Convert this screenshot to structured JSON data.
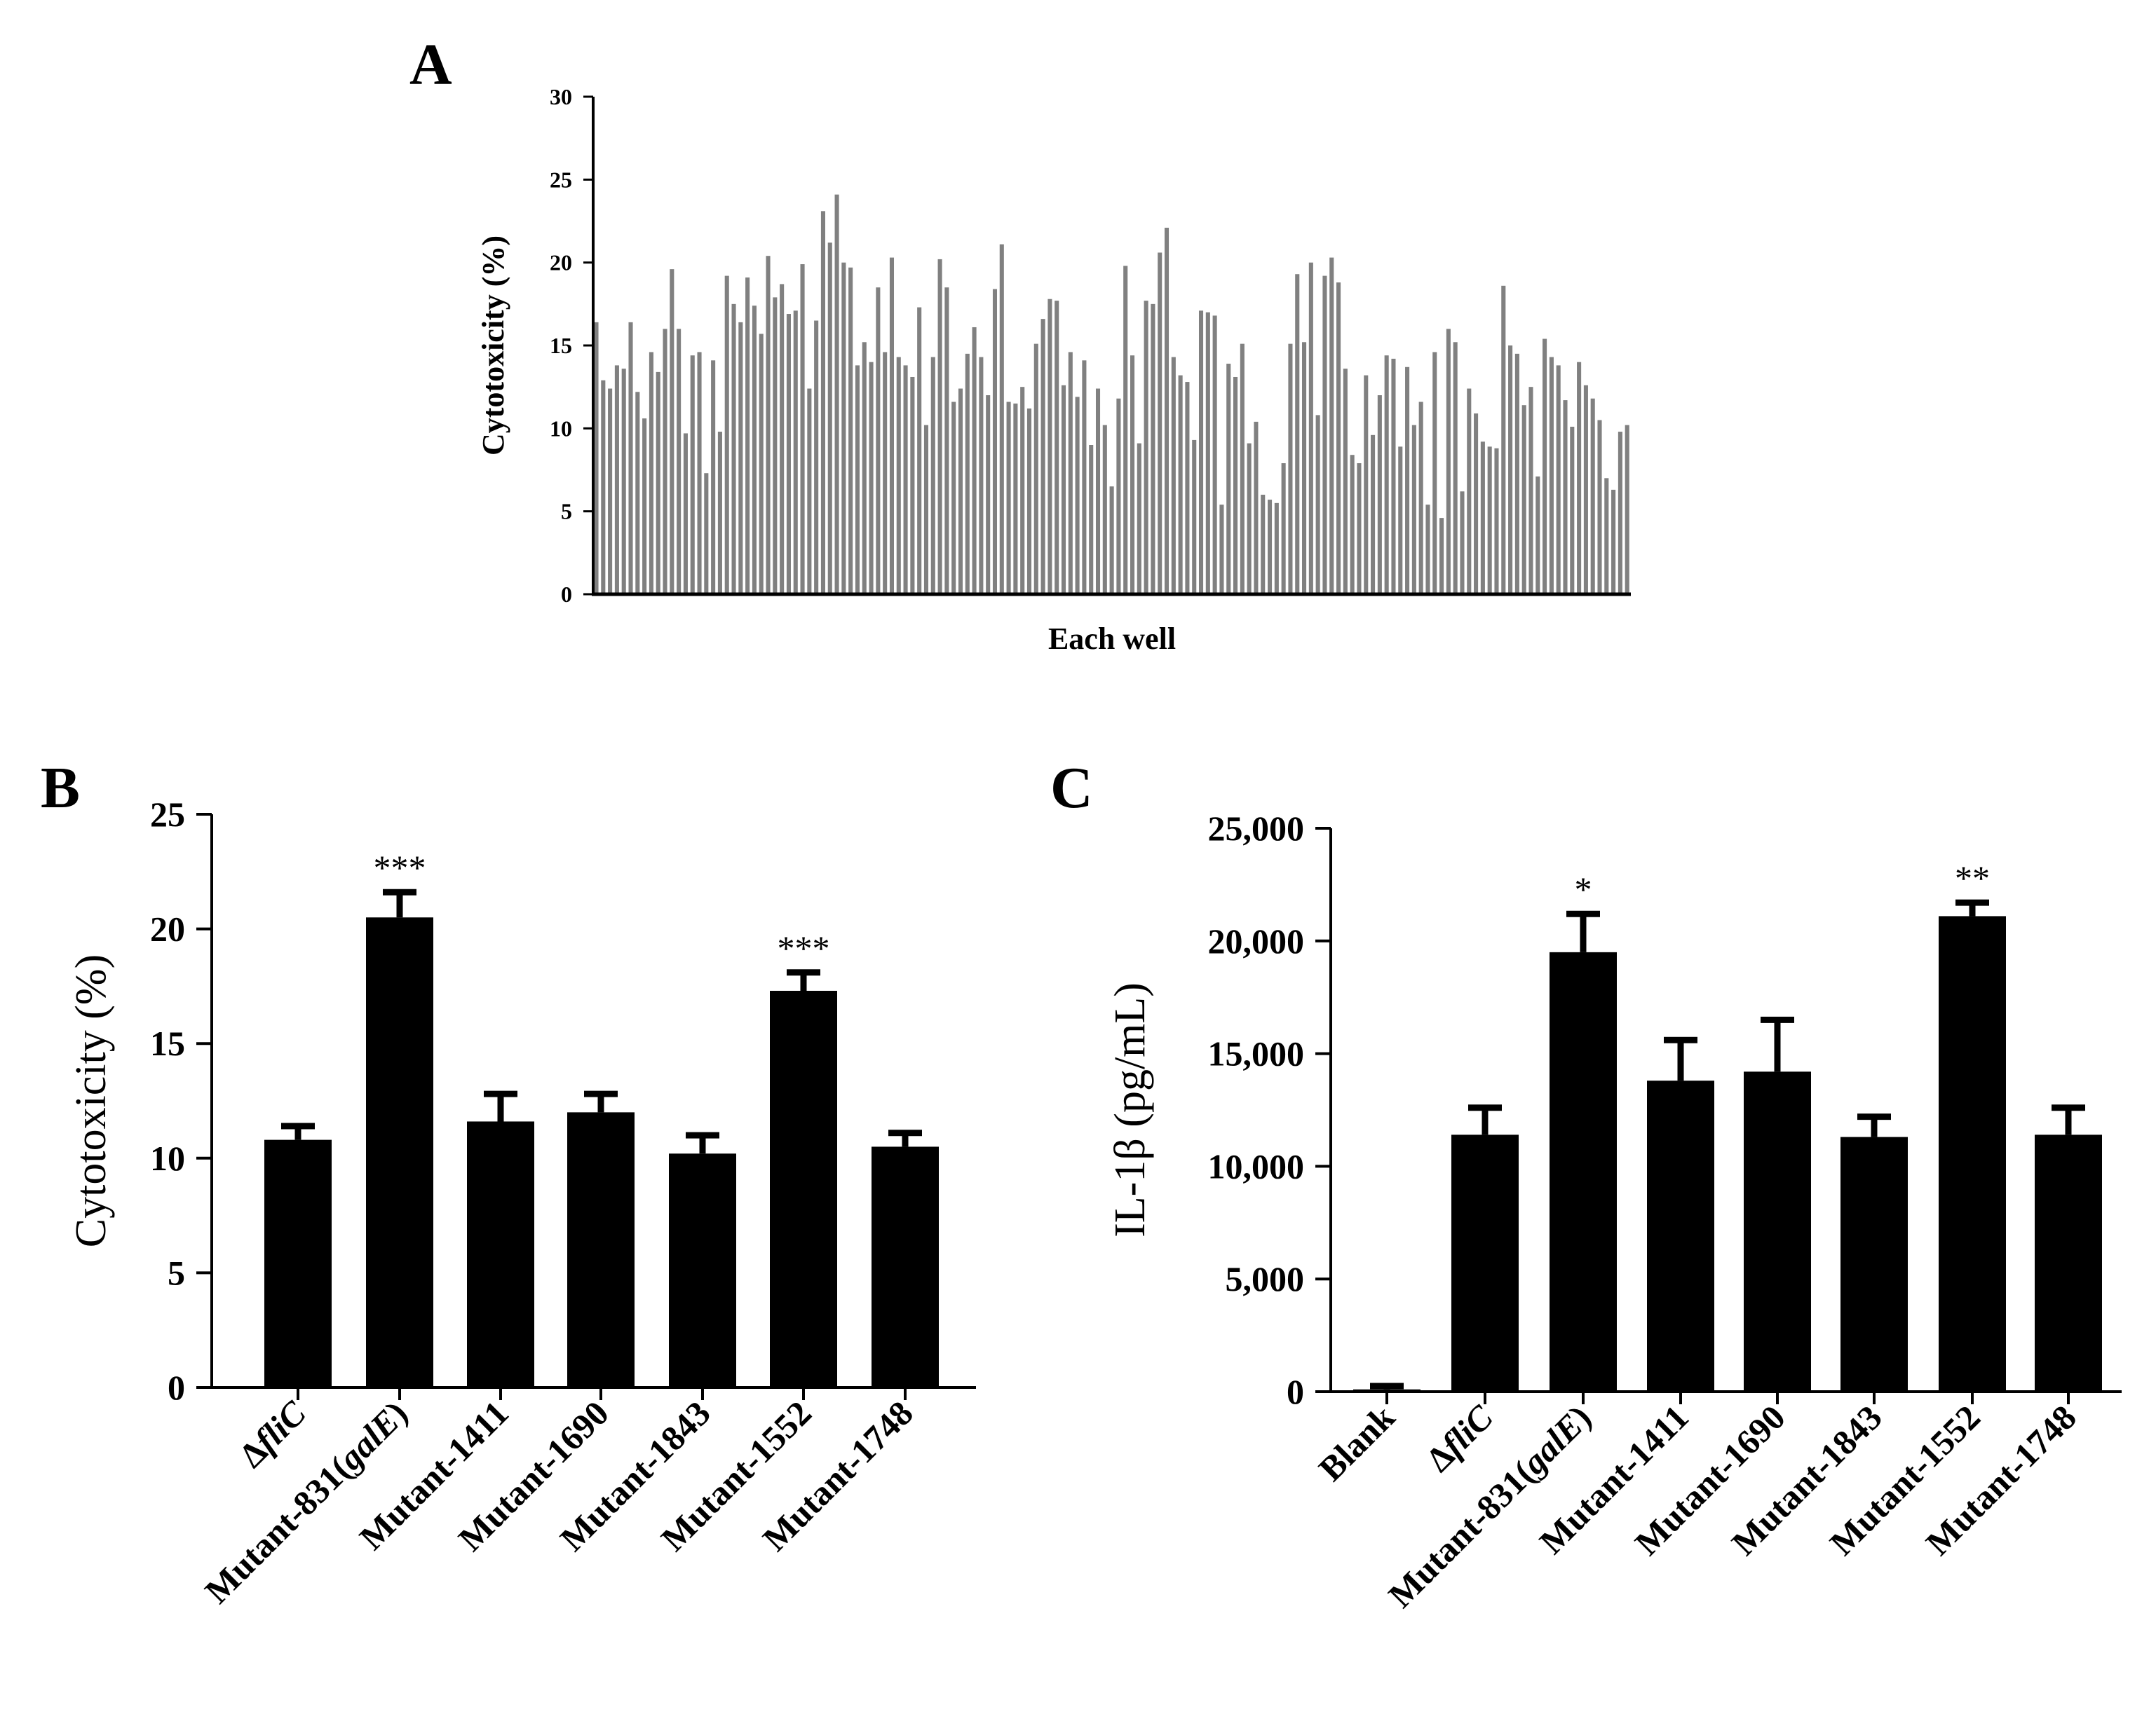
{
  "figure": {
    "panel_letters": [
      "A",
      "B",
      "C"
    ]
  },
  "chart_data": [
    {
      "panel": "A",
      "type": "bar",
      "title": "",
      "xlabel": "Each well",
      "ylabel": "Cytotoxicity (%)",
      "ylim": [
        0,
        30
      ],
      "yticks": [
        0,
        5,
        10,
        15,
        20,
        25,
        30
      ],
      "bar_color": "#808080",
      "values": [
        16.4,
        12.9,
        12.4,
        13.8,
        13.6,
        16.4,
        12.2,
        10.6,
        14.6,
        13.4,
        16.0,
        19.6,
        16.0,
        9.7,
        14.4,
        14.6,
        7.3,
        14.1,
        9.8,
        19.2,
        17.5,
        16.4,
        19.1,
        17.4,
        15.7,
        20.4,
        17.9,
        18.7,
        16.9,
        17.1,
        19.9,
        12.4,
        16.5,
        23.1,
        21.2,
        24.1,
        20.0,
        19.7,
        13.8,
        15.2,
        14.0,
        18.5,
        14.6,
        20.3,
        14.3,
        13.8,
        13.1,
        17.3,
        10.2,
        14.3,
        20.2,
        18.5,
        11.6,
        12.4,
        14.5,
        16.1,
        14.3,
        12.0,
        18.4,
        21.1,
        11.6,
        11.5,
        12.5,
        11.2,
        15.1,
        16.6,
        17.8,
        17.7,
        12.6,
        14.6,
        11.9,
        14.1,
        9.0,
        12.4,
        10.2,
        6.5,
        11.8,
        19.8,
        14.4,
        9.1,
        17.7,
        17.5,
        20.6,
        22.1,
        14.3,
        13.2,
        12.8,
        9.3,
        17.1,
        17.0,
        16.8,
        5.4,
        13.9,
        13.1,
        15.1,
        9.1,
        10.4,
        6.0,
        5.7,
        5.5,
        7.9,
        15.1,
        19.3,
        15.2,
        20.0,
        10.8,
        19.2,
        20.3,
        18.8,
        13.6,
        8.4,
        7.9,
        13.2,
        9.6,
        12.0,
        14.4,
        14.2,
        8.9,
        13.7,
        10.2,
        11.6,
        5.4,
        14.6,
        4.6,
        16.0,
        15.2,
        6.2,
        12.4,
        10.9,
        9.2,
        8.9,
        8.8,
        18.6,
        15.0,
        14.5,
        11.4,
        12.5,
        7.1,
        15.4,
        14.3,
        13.8,
        11.7,
        10.1,
        14.0,
        12.6,
        11.8,
        10.5,
        7.0,
        6.3,
        9.8,
        10.2
      ]
    },
    {
      "panel": "B",
      "type": "bar",
      "title": "",
      "xlabel": "",
      "ylabel": "Cytotoxicity (%)",
      "ylim": [
        0,
        25
      ],
      "yticks": [
        0,
        5,
        10,
        15,
        20,
        25
      ],
      "categories": [
        {
          "prefix": "Δ",
          "italic": "fliC",
          "suffix": ""
        },
        {
          "prefix": "Mutant-831(",
          "italic": "galE",
          "suffix": ")"
        },
        {
          "prefix": "Mutant-1411",
          "italic": "",
          "suffix": ""
        },
        {
          "prefix": "Mutant-1690",
          "italic": "",
          "suffix": ""
        },
        {
          "prefix": "Mutant-1843",
          "italic": "",
          "suffix": ""
        },
        {
          "prefix": "Mutant-1552",
          "italic": "",
          "suffix": ""
        },
        {
          "prefix": "Mutant-1748",
          "italic": "",
          "suffix": ""
        }
      ],
      "values": [
        10.8,
        20.5,
        11.6,
        12.0,
        10.2,
        17.3,
        10.5
      ],
      "errors": [
        0.6,
        1.1,
        1.2,
        0.8,
        0.8,
        0.8,
        0.6
      ],
      "significance": [
        "",
        "***",
        "",
        "",
        "",
        "***",
        ""
      ]
    },
    {
      "panel": "C",
      "type": "bar",
      "title": "",
      "xlabel": "",
      "ylabel": "IL-1β (pg/mL)",
      "ylim": [
        0,
        25000
      ],
      "yticks": [
        0,
        5000,
        10000,
        15000,
        20000,
        25000
      ],
      "ytick_labels": [
        "0",
        "5,000",
        "10,000",
        "15,000",
        "20,000",
        "25,000"
      ],
      "categories": [
        {
          "prefix": "Blank",
          "italic": "",
          "suffix": ""
        },
        {
          "prefix": "Δ",
          "italic": "fliC",
          "suffix": ""
        },
        {
          "prefix": "Mutant-831(",
          "italic": "galE",
          "suffix": ")"
        },
        {
          "prefix": "Mutant-1411",
          "italic": "",
          "suffix": ""
        },
        {
          "prefix": "Mutant-1690",
          "italic": "",
          "suffix": ""
        },
        {
          "prefix": "Mutant-1843",
          "italic": "",
          "suffix": ""
        },
        {
          "prefix": "Mutant-1552",
          "italic": "",
          "suffix": ""
        },
        {
          "prefix": "Mutant-1748",
          "italic": "",
          "suffix": ""
        }
      ],
      "values": [
        100,
        11400,
        19500,
        13800,
        14200,
        11300,
        21100,
        11400
      ],
      "errors": [
        150,
        1200,
        1700,
        1800,
        2300,
        900,
        600,
        1200
      ],
      "significance": [
        "",
        "",
        "*",
        "",
        "",
        "",
        "**",
        ""
      ]
    }
  ]
}
